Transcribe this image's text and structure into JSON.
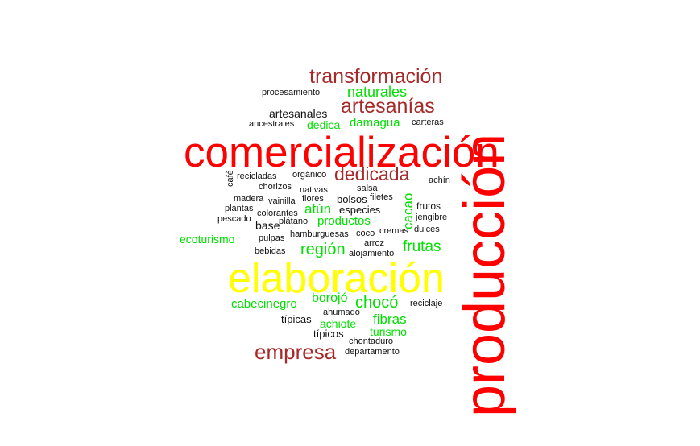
{
  "words": [
    {
      "id": "comercializacion",
      "text": "comercialización",
      "color": "red"
    },
    {
      "id": "produccion",
      "text": "producción",
      "color": "red"
    },
    {
      "id": "elaboracion",
      "text": "elaboración",
      "color": "yellow"
    },
    {
      "id": "transformacion",
      "text": "transformación",
      "color": "brown"
    },
    {
      "id": "artesanias",
      "text": "artesanías",
      "color": "brown"
    },
    {
      "id": "dedicada",
      "text": "dedicada",
      "color": "brown"
    },
    {
      "id": "empresa",
      "text": "empresa",
      "color": "brown"
    },
    {
      "id": "naturales",
      "text": "naturales",
      "color": "green"
    },
    {
      "id": "dedica",
      "text": "dedica",
      "color": "green"
    },
    {
      "id": "damagua",
      "text": "damagua",
      "color": "green"
    },
    {
      "id": "atun",
      "text": "atún",
      "color": "green"
    },
    {
      "id": "productos",
      "text": "productos",
      "color": "green"
    },
    {
      "id": "cacao",
      "text": "cacao",
      "color": "green"
    },
    {
      "id": "ecoturismo",
      "text": "ecoturismo",
      "color": "green"
    },
    {
      "id": "region",
      "text": "región",
      "color": "green"
    },
    {
      "id": "frutas",
      "text": "frutas",
      "color": "green"
    },
    {
      "id": "cabecinegro",
      "text": "cabecinegro",
      "color": "green"
    },
    {
      "id": "borojo",
      "text": "borojó",
      "color": "green"
    },
    {
      "id": "choco",
      "text": "chocó",
      "color": "green"
    },
    {
      "id": "achiote",
      "text": "achiote",
      "color": "green"
    },
    {
      "id": "fibras",
      "text": "fibras",
      "color": "green"
    },
    {
      "id": "turismo",
      "text": "turismo",
      "color": "green"
    },
    {
      "id": "procesamiento",
      "text": "procesamiento",
      "color": "black"
    },
    {
      "id": "artesanales",
      "text": "artesanales",
      "color": "black"
    },
    {
      "id": "ancestrales",
      "text": "ancestrales",
      "color": "black"
    },
    {
      "id": "carteras",
      "text": "carteras",
      "color": "black"
    },
    {
      "id": "cafe",
      "text": "café",
      "color": "black"
    },
    {
      "id": "recicladas",
      "text": "recicladas",
      "color": "black"
    },
    {
      "id": "organico",
      "text": "orgánico",
      "color": "black"
    },
    {
      "id": "achin",
      "text": "achín",
      "color": "black"
    },
    {
      "id": "chorizos",
      "text": "chorizos",
      "color": "black"
    },
    {
      "id": "nativas",
      "text": "nativas",
      "color": "black"
    },
    {
      "id": "salsa",
      "text": "salsa",
      "color": "black"
    },
    {
      "id": "madera",
      "text": "madera",
      "color": "black"
    },
    {
      "id": "vainilla",
      "text": "vainilla",
      "color": "black"
    },
    {
      "id": "flores",
      "text": "flores",
      "color": "black"
    },
    {
      "id": "bolsos",
      "text": "bolsos",
      "color": "black"
    },
    {
      "id": "filetes",
      "text": "filetes",
      "color": "black"
    },
    {
      "id": "frutos",
      "text": "frutos",
      "color": "black"
    },
    {
      "id": "plantas",
      "text": "plantas",
      "color": "black"
    },
    {
      "id": "colorantes",
      "text": "colorantes",
      "color": "black"
    },
    {
      "id": "especies",
      "text": "especies",
      "color": "black"
    },
    {
      "id": "jengibre",
      "text": "jengibre",
      "color": "black"
    },
    {
      "id": "pescado",
      "text": "pescado",
      "color": "black"
    },
    {
      "id": "platano",
      "text": "plátano",
      "color": "black"
    },
    {
      "id": "base",
      "text": "base",
      "color": "black"
    },
    {
      "id": "cremas",
      "text": "cremas",
      "color": "black"
    },
    {
      "id": "dulces",
      "text": "dulces",
      "color": "black"
    },
    {
      "id": "hamburguesas",
      "text": "hamburguesas",
      "color": "black"
    },
    {
      "id": "coco",
      "text": "coco",
      "color": "black"
    },
    {
      "id": "pulpas",
      "text": "pulpas",
      "color": "black"
    },
    {
      "id": "arroz",
      "text": "arroz",
      "color": "black"
    },
    {
      "id": "bebidas",
      "text": "bebidas",
      "color": "black"
    },
    {
      "id": "alojamiento",
      "text": "alojamiento",
      "color": "black"
    },
    {
      "id": "ahumado",
      "text": "ahumado",
      "color": "black"
    },
    {
      "id": "reciclaje",
      "text": "reciclaje",
      "color": "black"
    },
    {
      "id": "tipicas",
      "text": "típicas",
      "color": "black"
    },
    {
      "id": "tipicos",
      "text": "típicos",
      "color": "black"
    },
    {
      "id": "chontaduro",
      "text": "chontaduro",
      "color": "black"
    },
    {
      "id": "departamento",
      "text": "departamento",
      "color": "black"
    }
  ]
}
